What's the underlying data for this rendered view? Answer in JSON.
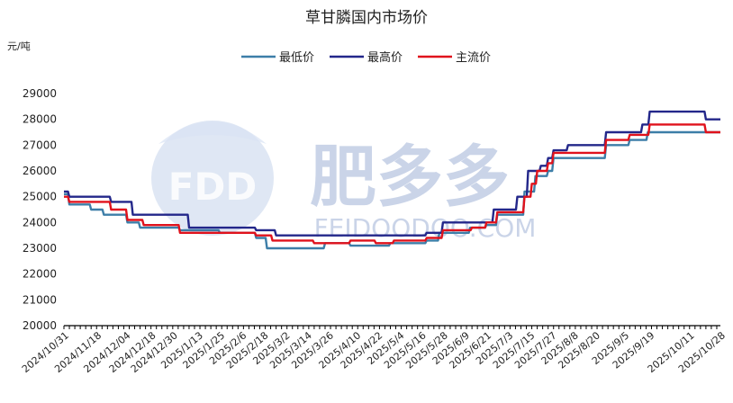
{
  "chart_data": {
    "type": "line",
    "title": "草甘膦国内市场价",
    "unit_label": "元/吨",
    "ylim": [
      20000,
      29000
    ],
    "y_ticks": [
      20000,
      21000,
      22000,
      23000,
      24000,
      25000,
      26000,
      27000,
      28000,
      29000
    ],
    "legend_position": "top-center",
    "grid": false,
    "x_tick_labels": [
      "2024/10/31",
      "2024/11/18",
      "2024/12/04",
      "2024/12/18",
      "2024/12/30",
      "2025/1/13",
      "2025/1/25",
      "2025/2/6",
      "2025/2/18",
      "2025/3/2",
      "2025/3/14",
      "2025/3/26",
      "2025/4/10",
      "2025/4/22",
      "2025/5/4",
      "2025/5/16",
      "2025/5/28",
      "2025/6/9",
      "2025/6/21",
      "2025/7/3",
      "2025/7/15",
      "2025/7/27",
      "2025/8/8",
      "2025/8/20",
      "2025/9/5",
      "2025/9/19",
      "2025/10/11",
      "2025/10/28"
    ],
    "series": [
      {
        "name": "最低价",
        "color": "#3d7ea8",
        "points": [
          [
            "2024/10/31",
            25100
          ],
          [
            "2024/11/3",
            24700
          ],
          [
            "2024/11/15",
            24500
          ],
          [
            "2024/11/22",
            24300
          ],
          [
            "2024/12/5",
            24000
          ],
          [
            "2024/12/12",
            23800
          ],
          [
            "2025/1/3",
            23700
          ],
          [
            "2025/1/25",
            23600
          ],
          [
            "2025/2/14",
            23400
          ],
          [
            "2025/2/20",
            23000
          ],
          [
            "2025/3/24",
            23200
          ],
          [
            "2025/4/7",
            23100
          ],
          [
            "2025/4/21",
            23100
          ],
          [
            "2025/4/29",
            23200
          ],
          [
            "2025/5/19",
            23300
          ],
          [
            "2025/5/26",
            23600
          ],
          [
            "2025/6/12",
            23800
          ],
          [
            "2025/6/21",
            23900
          ],
          [
            "2025/6/27",
            24300
          ],
          [
            "2025/7/12",
            25200
          ],
          [
            "2025/7/18",
            25800
          ],
          [
            "2025/7/25",
            26000
          ],
          [
            "2025/7/28",
            26500
          ],
          [
            "2025/8/19",
            26500
          ],
          [
            "2025/8/26",
            27000
          ],
          [
            "2025/9/8",
            27200
          ],
          [
            "2025/9/18",
            27500
          ],
          [
            "2025/10/28",
            27500
          ]
        ]
      },
      {
        "name": "最高价",
        "color": "#23278a",
        "points": [
          [
            "2024/10/31",
            25200
          ],
          [
            "2024/11/3",
            25000
          ],
          [
            "2024/11/26",
            24800
          ],
          [
            "2024/12/8",
            24300
          ],
          [
            "2025/1/8",
            23800
          ],
          [
            "2025/2/14",
            23700
          ],
          [
            "2025/2/25",
            23500
          ],
          [
            "2025/4/21",
            23500
          ],
          [
            "2025/5/19",
            23600
          ],
          [
            "2025/5/28",
            24000
          ],
          [
            "2025/6/25",
            24500
          ],
          [
            "2025/7/8",
            25000
          ],
          [
            "2025/7/14",
            26000
          ],
          [
            "2025/7/21",
            26200
          ],
          [
            "2025/7/25",
            26500
          ],
          [
            "2025/7/28",
            26800
          ],
          [
            "2025/8/5",
            27000
          ],
          [
            "2025/8/26",
            27500
          ],
          [
            "2025/9/15",
            27800
          ],
          [
            "2025/9/19",
            28300
          ],
          [
            "2025/10/20",
            28000
          ],
          [
            "2025/10/28",
            28000
          ]
        ]
      },
      {
        "name": "主流价",
        "color": "#e0121c",
        "points": [
          [
            "2024/10/31",
            25000
          ],
          [
            "2024/11/3",
            24800
          ],
          [
            "2024/11/26",
            24500
          ],
          [
            "2024/12/5",
            24100
          ],
          [
            "2024/12/14",
            23900
          ],
          [
            "2025/1/3",
            23600
          ],
          [
            "2025/2/14",
            23500
          ],
          [
            "2025/2/23",
            23300
          ],
          [
            "2025/3/18",
            23200
          ],
          [
            "2025/4/7",
            23300
          ],
          [
            "2025/4/21",
            23200
          ],
          [
            "2025/5/1",
            23300
          ],
          [
            "2025/5/19",
            23400
          ],
          [
            "2025/5/28",
            23700
          ],
          [
            "2025/6/13",
            23800
          ],
          [
            "2025/6/21",
            24000
          ],
          [
            "2025/6/27",
            24400
          ],
          [
            "2025/7/12",
            25000
          ],
          [
            "2025/7/16",
            25500
          ],
          [
            "2025/7/19",
            26000
          ],
          [
            "2025/7/25",
            26300
          ],
          [
            "2025/7/28",
            26700
          ],
          [
            "2025/8/26",
            27200
          ],
          [
            "2025/9/8",
            27400
          ],
          [
            "2025/9/19",
            27800
          ],
          [
            "2025/10/20",
            27500
          ],
          [
            "2025/10/28",
            27500
          ]
        ]
      }
    ]
  },
  "watermark": {
    "logo_text": "FDD",
    "brand_text": "肥多多",
    "url_text": "FEIDOODOO.COM",
    "color": "#9fb2d6"
  }
}
